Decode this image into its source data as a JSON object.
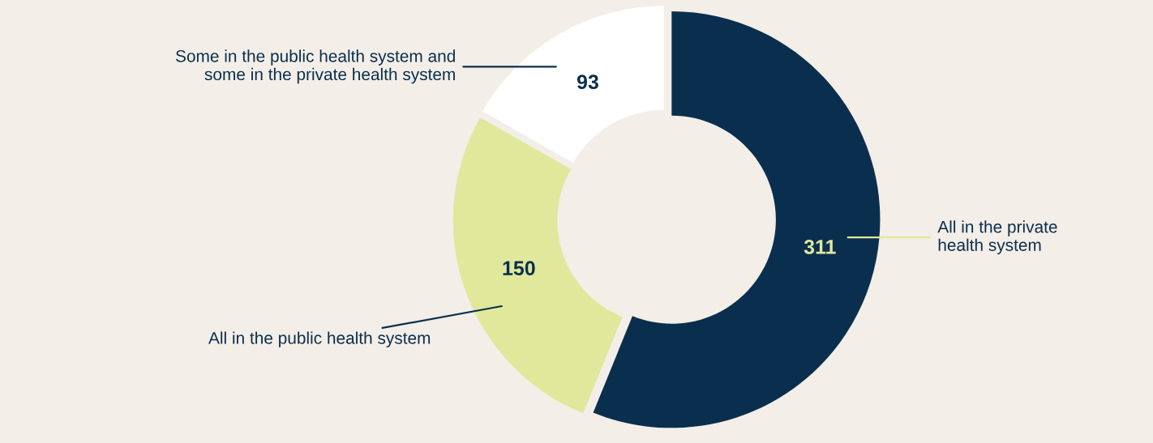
{
  "chart_data": {
    "type": "donut",
    "categories": [
      "All in the private\nhealth system",
      "All in the public health system",
      "Some in the public health system and\nsome in the private health system"
    ],
    "values": [
      311,
      150,
      93
    ],
    "colors": [
      "#0a2f4e",
      "#e0e89c",
      "#ffffff"
    ],
    "data_labels": true,
    "legend": false
  }
}
